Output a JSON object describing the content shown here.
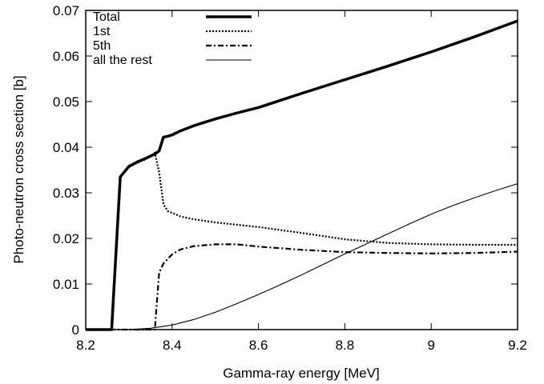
{
  "chart_data": {
    "type": "line",
    "xlabel": "Gamma-ray energy  [MeV]",
    "ylabel": "Photo-neutron cross section  [b]",
    "xlim": [
      8.2,
      9.2
    ],
    "ylim": [
      0,
      0.07
    ],
    "xticks": [
      "8.2",
      "8.4",
      "8.6",
      "8.8",
      "9",
      "9.2"
    ],
    "yticks": [
      "0",
      "0.01",
      "0.02",
      "0.03",
      "0.04",
      "0.05",
      "0.06",
      "0.07"
    ],
    "grid": false,
    "legend_position": "top-left",
    "series": [
      {
        "name": "Total",
        "style": "solid-thick",
        "points": [
          [
            8.2,
            0
          ],
          [
            8.26,
            0
          ],
          [
            8.28,
            0.0335
          ],
          [
            8.3,
            0.0358
          ],
          [
            8.32,
            0.0368
          ],
          [
            8.34,
            0.0376
          ],
          [
            8.36,
            0.0385
          ],
          [
            8.37,
            0.0392
          ],
          [
            8.38,
            0.0422
          ],
          [
            8.39,
            0.0424
          ],
          [
            8.4,
            0.0427
          ],
          [
            8.42,
            0.0436
          ],
          [
            8.45,
            0.0447
          ],
          [
            8.5,
            0.0462
          ],
          [
            8.55,
            0.0475
          ],
          [
            8.6,
            0.0487
          ],
          [
            8.7,
            0.0518
          ],
          [
            8.8,
            0.0548
          ],
          [
            8.9,
            0.0578
          ],
          [
            9.0,
            0.0609
          ],
          [
            9.1,
            0.0642
          ],
          [
            9.2,
            0.0677
          ]
        ]
      },
      {
        "name": "1st",
        "style": "dotted",
        "points": [
          [
            8.2,
            0
          ],
          [
            8.26,
            0
          ],
          [
            8.28,
            0.0335
          ],
          [
            8.3,
            0.0356
          ],
          [
            8.32,
            0.0366
          ],
          [
            8.34,
            0.0374
          ],
          [
            8.36,
            0.0388
          ],
          [
            8.37,
            0.0345
          ],
          [
            8.38,
            0.0275
          ],
          [
            8.39,
            0.026
          ],
          [
            8.42,
            0.0248
          ],
          [
            8.45,
            0.0242
          ],
          [
            8.5,
            0.0235
          ],
          [
            8.6,
            0.0225
          ],
          [
            8.7,
            0.0212
          ],
          [
            8.8,
            0.0198
          ],
          [
            8.9,
            0.019
          ],
          [
            9.0,
            0.0187
          ],
          [
            9.1,
            0.0186
          ],
          [
            9.2,
            0.0186
          ]
        ]
      },
      {
        "name": "5th",
        "style": "dash-dot",
        "points": [
          [
            8.2,
            0
          ],
          [
            8.36,
            0
          ],
          [
            8.37,
            0.0125
          ],
          [
            8.38,
            0.0145
          ],
          [
            8.4,
            0.0165
          ],
          [
            8.42,
            0.0176
          ],
          [
            8.45,
            0.0183
          ],
          [
            8.5,
            0.0187
          ],
          [
            8.55,
            0.0187
          ],
          [
            8.6,
            0.0182
          ],
          [
            8.7,
            0.0175
          ],
          [
            8.8,
            0.017
          ],
          [
            8.9,
            0.0168
          ],
          [
            9.0,
            0.0167
          ],
          [
            9.1,
            0.0168
          ],
          [
            9.2,
            0.0171
          ]
        ]
      },
      {
        "name": "all the rest",
        "style": "solid-thin",
        "points": [
          [
            8.2,
            0
          ],
          [
            8.3,
            0
          ],
          [
            8.35,
            0.0003
          ],
          [
            8.4,
            0.001
          ],
          [
            8.45,
            0.0022
          ],
          [
            8.5,
            0.0038
          ],
          [
            8.55,
            0.0057
          ],
          [
            8.6,
            0.0077
          ],
          [
            8.65,
            0.0098
          ],
          [
            8.7,
            0.012
          ],
          [
            8.75,
            0.0143
          ],
          [
            8.8,
            0.0166
          ],
          [
            8.85,
            0.0188
          ],
          [
            8.9,
            0.021
          ],
          [
            8.95,
            0.0232
          ],
          [
            9.0,
            0.0253
          ],
          [
            9.05,
            0.0272
          ],
          [
            9.1,
            0.0289
          ],
          [
            9.15,
            0.0305
          ],
          [
            9.2,
            0.032
          ]
        ]
      }
    ]
  }
}
